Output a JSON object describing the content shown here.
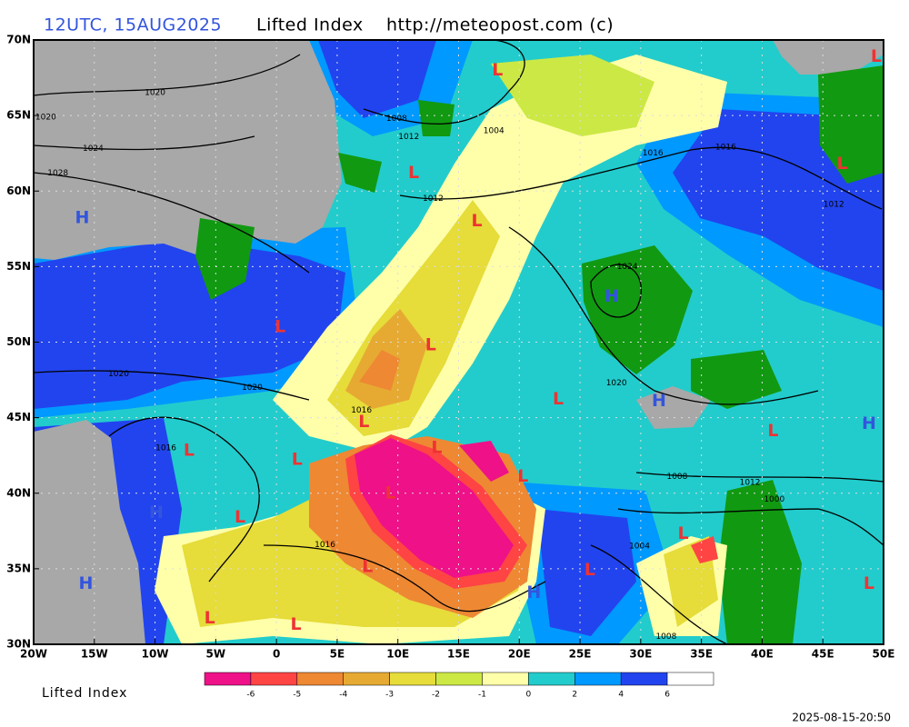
{
  "header": {
    "time": "12UTC, 15AUG2025",
    "product": "Lifted Index",
    "source": "http://meteopost.com (c)"
  },
  "map": {
    "lon_range": [
      -20,
      50
    ],
    "lat_range": [
      30,
      70
    ],
    "grid": true,
    "lon_ticks": [
      {
        "value": -20,
        "label": "20W"
      },
      {
        "value": -15,
        "label": "15W"
      },
      {
        "value": -10,
        "label": "10W"
      },
      {
        "value": -5,
        "label": "5W"
      },
      0,
      {
        "value": 5,
        "label": "5E"
      },
      {
        "value": 10,
        "label": "10E"
      },
      {
        "value": 15,
        "label": "15E"
      },
      {
        "value": 20,
        "label": "20E"
      },
      {
        "value": 25,
        "label": "25E"
      },
      {
        "value": 30,
        "label": "30E"
      },
      {
        "value": 35,
        "label": "35E"
      },
      {
        "value": 40,
        "label": "40E"
      },
      {
        "value": 45,
        "label": "45E"
      },
      {
        "value": 50,
        "label": "50E"
      }
    ],
    "lat_ticks": [
      {
        "value": 30,
        "label": "30N"
      },
      {
        "value": 35,
        "label": "35N"
      },
      {
        "value": 40,
        "label": "40N"
      },
      {
        "value": 45,
        "label": "45N"
      },
      {
        "value": 50,
        "label": "50N"
      },
      {
        "value": 55,
        "label": "55N"
      },
      {
        "value": 60,
        "label": "60N"
      },
      {
        "value": 65,
        "label": "65N"
      },
      {
        "value": 70,
        "label": "70N"
      }
    ],
    "pressure_centers": [
      {
        "label": "H",
        "lon": -16.0,
        "lat": 58.2
      },
      {
        "label": "L",
        "lon": 18.2,
        "lat": 68.0
      },
      {
        "label": "L",
        "lon": 49.4,
        "lat": 68.9
      },
      {
        "label": "L",
        "lon": 11.3,
        "lat": 61.2
      },
      {
        "label": "L",
        "lon": 16.5,
        "lat": 58.0
      },
      {
        "label": "L",
        "lon": 46.6,
        "lat": 61.8
      },
      {
        "label": "H",
        "lon": 27.6,
        "lat": 53.0
      },
      {
        "label": "L",
        "lon": 0.3,
        "lat": 51.0
      },
      {
        "label": "L",
        "lon": 12.7,
        "lat": 49.8
      },
      {
        "label": "L",
        "lon": 23.2,
        "lat": 46.2
      },
      {
        "label": "H",
        "lon": 31.5,
        "lat": 46.1
      },
      {
        "label": "L",
        "lon": 7.2,
        "lat": 44.7
      },
      {
        "label": "L",
        "lon": 40.9,
        "lat": 44.1
      },
      {
        "label": "H",
        "lon": 48.8,
        "lat": 44.6
      },
      {
        "label": "L",
        "lon": 13.2,
        "lat": 43.0
      },
      {
        "label": "L",
        "lon": -7.2,
        "lat": 42.8
      },
      {
        "label": "L",
        "lon": 1.7,
        "lat": 42.2
      },
      {
        "label": "L",
        "lon": 20.3,
        "lat": 41.1
      },
      {
        "label": "L",
        "lon": 9.4,
        "lat": 40.0
      },
      {
        "label": "H",
        "lon": -9.9,
        "lat": 38.7
      },
      {
        "label": "L",
        "lon": -3.0,
        "lat": 38.4
      },
      {
        "label": "L",
        "lon": 33.5,
        "lat": 37.3
      },
      {
        "label": "L",
        "lon": 7.5,
        "lat": 35.1
      },
      {
        "label": "L",
        "lon": 25.8,
        "lat": 34.9
      },
      {
        "label": "H",
        "lon": -15.7,
        "lat": 34.0
      },
      {
        "label": "H",
        "lon": 21.2,
        "lat": 33.4
      },
      {
        "label": "L",
        "lon": 48.8,
        "lat": 34.0
      },
      {
        "label": "L",
        "lon": -5.5,
        "lat": 31.7
      },
      {
        "label": "L",
        "lon": 1.6,
        "lat": 31.3
      }
    ],
    "isobar_labels": [
      {
        "label": "1020",
        "lon": -10.0,
        "lat": 66.5
      },
      {
        "label": "1020",
        "lon": -19.0,
        "lat": 64.9
      },
      {
        "label": "1024",
        "lon": -15.1,
        "lat": 62.8
      },
      {
        "label": "1028",
        "lon": -18.0,
        "lat": 61.2
      },
      {
        "label": "1008",
        "lon": 9.9,
        "lat": 64.8
      },
      {
        "label": "1012",
        "lon": 10.9,
        "lat": 63.6
      },
      {
        "label": "1004",
        "lon": 17.9,
        "lat": 64.0
      },
      {
        "label": "1016",
        "lon": 31.0,
        "lat": 62.5
      },
      {
        "label": "1016",
        "lon": 37.0,
        "lat": 62.9
      },
      {
        "label": "1012",
        "lon": 12.9,
        "lat": 59.5
      },
      {
        "label": "1012",
        "lon": 45.9,
        "lat": 59.1
      },
      {
        "label": "1024",
        "lon": 28.9,
        "lat": 55.0
      },
      {
        "label": "1020",
        "lon": -13.0,
        "lat": 47.9
      },
      {
        "label": "1020",
        "lon": -2.0,
        "lat": 47.0
      },
      {
        "label": "1020",
        "lon": 28.0,
        "lat": 47.3
      },
      {
        "label": "1016",
        "lon": 7.0,
        "lat": 45.5
      },
      {
        "label": "1016",
        "lon": -9.1,
        "lat": 43.0
      },
      {
        "label": "1016",
        "lon": 4.0,
        "lat": 36.6
      },
      {
        "label": "1008",
        "lon": 33.0,
        "lat": 41.1
      },
      {
        "label": "1012",
        "lon": 39.0,
        "lat": 40.7
      },
      {
        "label": "1000",
        "lon": 41.0,
        "lat": 39.6
      },
      {
        "label": "1004",
        "lon": 29.9,
        "lat": 36.5
      },
      {
        "label": "1008",
        "lon": 32.1,
        "lat": 30.5
      }
    ],
    "high_color": "#3355dd",
    "low_color": "#ee3333"
  },
  "colorbar": {
    "title": "Lifted Index",
    "colors": [
      "#ee1188",
      "#ff4444",
      "#ee8833",
      "#e6aa33",
      "#e6dc3a",
      "#cce844",
      "#ffffaa",
      "#22cccc",
      "#0099ff",
      "#2244ee",
      "#ffffff"
    ],
    "ticks": [
      -6,
      -5,
      -4,
      -3,
      -2,
      -1,
      0,
      2,
      4,
      6
    ]
  },
  "timestamp": "2025-08-15-20:50"
}
